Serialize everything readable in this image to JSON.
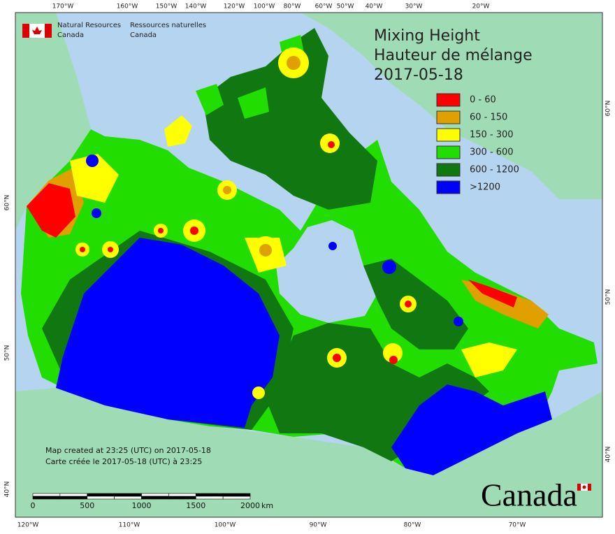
{
  "header": {
    "org_en": [
      "Natural Resources",
      "Canada"
    ],
    "org_fr": [
      "Ressources naturelles",
      "Canada"
    ]
  },
  "title": [
    "Mixing Height",
    "Hauteur de mélange",
    "2017-05-18"
  ],
  "legend": [
    {
      "label": "0 - 60",
      "color": "#ff0000"
    },
    {
      "label": "60 - 150",
      "color": "#e0a000"
    },
    {
      "label": "150 - 300",
      "color": "#ffff00"
    },
    {
      "label": "300 - 600",
      "color": "#22dd00"
    },
    {
      "label": "600 - 1200",
      "color": "#117711"
    },
    {
      "label": ">1200",
      "color": "#0000ff"
    }
  ],
  "note": [
    "Map created at 23:25 (UTC) on 2017-05-18",
    "Carte créée le 2017-05-18 (UTC) à 23:25"
  ],
  "scale_bar": {
    "labels": [
      "0",
      "500",
      "1000",
      "1500",
      "2000"
    ],
    "unit": "km"
  },
  "graticule": {
    "top": [
      "170°W",
      "160°W",
      "150°W",
      "140°W",
      "120°W",
      "100°W",
      "80°W",
      "60°W",
      "50°W",
      "40°W",
      "30°W",
      "20°W"
    ],
    "bottom": [
      "120°W",
      "110°W",
      "100°W",
      "90°W",
      "80°W",
      "70°W"
    ],
    "left": [
      "60°N",
      "50°N",
      "40°N"
    ],
    "right": [
      "60°N",
      "50°N",
      "40°N"
    ]
  },
  "wordmark": "Canada"
}
